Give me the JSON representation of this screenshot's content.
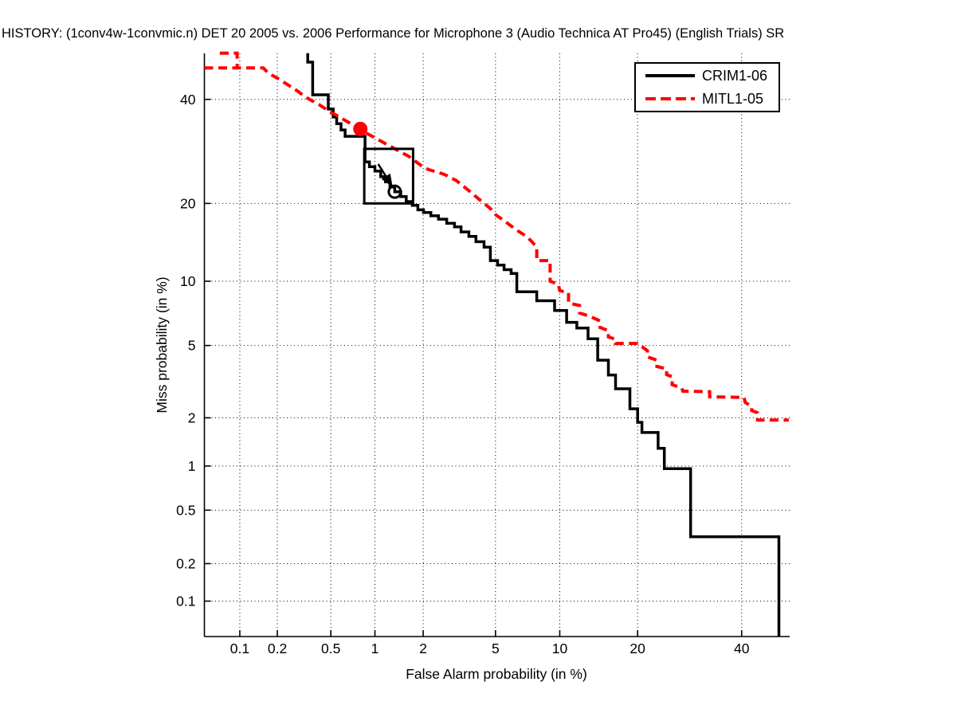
{
  "title": "HISTORY: (1conv4w-1convmic.n) DET 20 2005 vs. 2006 Performance for Microphone 3 (Audio Technica AT Pro45) (English Trials) SR",
  "axes": {
    "x": {
      "label": "False Alarm probability (in %)",
      "ticks": [
        0.1,
        0.2,
        0.5,
        1,
        2,
        5,
        10,
        20,
        40
      ],
      "range_pct": [
        0.05,
        50
      ],
      "scale": "probit"
    },
    "y": {
      "label": "Miss probability (in %)",
      "ticks": [
        0.1,
        0.2,
        0.5,
        1,
        2,
        5,
        10,
        20,
        40
      ],
      "range_pct": [
        0.05,
        50
      ],
      "scale": "probit"
    }
  },
  "legend": {
    "entries": [
      {
        "label": "CRIM1-06",
        "color": "#000000",
        "style": "solid"
      },
      {
        "label": "MITL1-05",
        "color": "#ff0000",
        "style": "dashed"
      }
    ]
  },
  "colors": {
    "crim": "#000000",
    "mitl": "#ff0000",
    "grid": "#000000",
    "background": "#ffffff"
  },
  "chart_data": {
    "type": "line",
    "subtype": "DET curve (step lines, probit-scaled axes)",
    "title": "HISTORY: (1conv4w-1convmic.n) DET 20 2005 vs. 2006 Performance for Microphone 3 (Audio Technica AT Pro45) (English Trials) SR",
    "xlabel": "False Alarm probability (in %)",
    "ylabel": "Miss probability (in %)",
    "x_ticks": [
      0.1,
      0.2,
      0.5,
      1,
      2,
      5,
      10,
      20,
      40
    ],
    "y_ticks": [
      0.1,
      0.2,
      0.5,
      1,
      2,
      5,
      10,
      20,
      40
    ],
    "xlim_pct": [
      0.05,
      50
    ],
    "ylim_pct": [
      0.05,
      50
    ],
    "grid": "dotted",
    "legend_position": "top-right",
    "series": [
      {
        "name": "CRIM1-06",
        "color": "#000000",
        "style": "solid",
        "width": 3.5,
        "segments": [
          [
            [
              0.34,
              50.3
            ],
            [
              0.34,
              48.3
            ],
            [
              0.37,
              48.3
            ],
            [
              0.37,
              41.0
            ],
            [
              0.48,
              41.0
            ],
            [
              0.48,
              37.9
            ],
            [
              0.52,
              37.9
            ],
            [
              0.52,
              36.2
            ],
            [
              0.55,
              36.2
            ],
            [
              0.55,
              34.8
            ],
            [
              0.59,
              34.8
            ],
            [
              0.59,
              33.5
            ],
            [
              0.63,
              33.5
            ],
            [
              0.63,
              32.2
            ],
            [
              0.86,
              32.2
            ],
            [
              0.86,
              27.2
            ],
            [
              0.92,
              27.2
            ],
            [
              0.92,
              26.3
            ],
            [
              1.0,
              26.3
            ],
            [
              1.0,
              25.5
            ],
            [
              1.09,
              25.5
            ],
            [
              1.09,
              24.5
            ],
            [
              1.17,
              24.5
            ],
            [
              1.17,
              23.6
            ],
            [
              1.25,
              23.6
            ],
            [
              1.25,
              22.7
            ],
            [
              1.34,
              22.7
            ],
            [
              1.34,
              21.9
            ],
            [
              1.46,
              21.9
            ],
            [
              1.46,
              21.1
            ],
            [
              1.58,
              21.1
            ],
            [
              1.58,
              20.3
            ],
            [
              1.72,
              20.3
            ],
            [
              1.72,
              19.7
            ],
            [
              1.86,
              19.7
            ],
            [
              1.86,
              19.0
            ],
            [
              2.01,
              19.0
            ],
            [
              2.01,
              18.6
            ],
            [
              2.22,
              18.6
            ],
            [
              2.22,
              18.1
            ],
            [
              2.46,
              18.1
            ],
            [
              2.46,
              17.6
            ],
            [
              2.74,
              17.6
            ],
            [
              2.74,
              17.0
            ],
            [
              3.03,
              17.0
            ],
            [
              3.03,
              16.5
            ],
            [
              3.29,
              16.5
            ],
            [
              3.29,
              15.8
            ],
            [
              3.63,
              15.8
            ],
            [
              3.63,
              15.2
            ],
            [
              3.96,
              15.2
            ],
            [
              3.96,
              14.5
            ],
            [
              4.37,
              14.5
            ],
            [
              4.37,
              13.8
            ],
            [
              4.71,
              13.8
            ],
            [
              4.71,
              12.2
            ],
            [
              5.12,
              12.2
            ],
            [
              5.12,
              11.7
            ],
            [
              5.52,
              11.7
            ],
            [
              5.52,
              11.2
            ],
            [
              5.98,
              11.2
            ],
            [
              5.98,
              10.8
            ],
            [
              6.37,
              10.8
            ],
            [
              6.37,
              9.0
            ],
            [
              7.9,
              9.0
            ],
            [
              7.9,
              8.2
            ],
            [
              9.5,
              8.2
            ],
            [
              9.5,
              7.4
            ],
            [
              10.7,
              7.4
            ],
            [
              10.7,
              6.5
            ],
            [
              11.8,
              6.5
            ],
            [
              11.8,
              6.1
            ],
            [
              13.1,
              6.1
            ],
            [
              13.1,
              5.4
            ],
            [
              14.3,
              5.4
            ],
            [
              14.3,
              4.2
            ],
            [
              15.7,
              4.2
            ],
            [
              15.7,
              3.5
            ],
            [
              16.7,
              3.5
            ],
            [
              16.7,
              2.94
            ],
            [
              18.8,
              2.94
            ],
            [
              18.8,
              2.26
            ],
            [
              20.0,
              2.26
            ],
            [
              20.0,
              1.88
            ],
            [
              20.7,
              1.88
            ],
            [
              20.7,
              1.63
            ],
            [
              23.4,
              1.63
            ],
            [
              23.4,
              1.3
            ],
            [
              24.5,
              1.3
            ],
            [
              24.5,
              0.96
            ],
            [
              29.4,
              0.96
            ],
            [
              29.4,
              0.32
            ],
            [
              48.3,
              0.32
            ],
            [
              48.3,
              0.05
            ]
          ]
        ]
      },
      {
        "name": "MITL1-05",
        "color": "#ff0000",
        "style": "dashed",
        "width": 4,
        "segments": [
          [
            [
              0.068,
              50.3
            ],
            [
              0.095,
              50.3
            ],
            [
              0.095,
              47.0
            ]
          ],
          [
            [
              0.05,
              47.0
            ],
            [
              0.155,
              47.0
            ],
            [
              0.17,
              45.8
            ],
            [
              0.2,
              44.7
            ],
            [
              0.23,
              43.6
            ],
            [
              0.26,
              42.6
            ],
            [
              0.29,
              41.7
            ],
            [
              0.32,
              40.7
            ],
            [
              0.36,
              39.8
            ],
            [
              0.41,
              38.9
            ],
            [
              0.45,
              38.1
            ],
            [
              0.5,
              37.2
            ],
            [
              0.57,
              36.3
            ],
            [
              0.63,
              35.5
            ],
            [
              0.7,
              34.7
            ],
            [
              0.78,
              33.9
            ],
            [
              0.86,
              33.0
            ],
            [
              0.96,
              32.2
            ],
            [
              1.07,
              31.4
            ],
            [
              1.19,
              30.6
            ],
            [
              1.33,
              29.8
            ],
            [
              1.47,
              29.0
            ],
            [
              1.63,
              28.3
            ],
            [
              1.78,
              27.4
            ],
            [
              1.95,
              26.5
            ],
            [
              2.14,
              25.8
            ],
            [
              2.6,
              25.0
            ],
            [
              2.74,
              24.7
            ],
            [
              3.1,
              23.8
            ],
            [
              3.53,
              22.4
            ],
            [
              3.96,
              21.1
            ],
            [
              4.37,
              20.0
            ],
            [
              4.71,
              19.2
            ],
            [
              5.03,
              18.2
            ],
            [
              5.52,
              17.4
            ],
            [
              5.93,
              16.7
            ],
            [
              6.48,
              15.9
            ],
            [
              7.07,
              15.2
            ],
            [
              7.45,
              14.6
            ],
            [
              7.9,
              13.8
            ],
            [
              7.9,
              12.2
            ],
            [
              9.08,
              12.2
            ],
            [
              9.08,
              10.0
            ],
            [
              9.85,
              9.7
            ],
            [
              10.0,
              9.1
            ],
            [
              10.9,
              8.9
            ],
            [
              10.9,
              8.0
            ],
            [
              12.1,
              7.8
            ],
            [
              12.1,
              7.2
            ],
            [
              13.3,
              6.95
            ],
            [
              14.6,
              6.6
            ],
            [
              14.6,
              6.14
            ],
            [
              15.7,
              5.93
            ],
            [
              15.7,
              5.52
            ],
            [
              16.7,
              5.37
            ],
            [
              16.7,
              5.12
            ],
            [
              20.0,
              5.12
            ],
            [
              21.6,
              4.7
            ],
            [
              21.6,
              4.37
            ],
            [
              23.2,
              4.2
            ],
            [
              23.2,
              3.89
            ],
            [
              24.9,
              3.78
            ],
            [
              24.9,
              3.52
            ],
            [
              25.9,
              3.43
            ],
            [
              25.9,
              3.1
            ],
            [
              27.7,
              2.97
            ],
            [
              27.9,
              2.85
            ],
            [
              33.2,
              2.83
            ],
            [
              33.2,
              2.65
            ],
            [
              40.5,
              2.63
            ],
            [
              40.8,
              2.46
            ],
            [
              42.2,
              2.33
            ],
            [
              42.2,
              2.21
            ],
            [
              43.5,
              2.14
            ],
            [
              43.5,
              1.94
            ],
            [
              50.5,
              1.94
            ]
          ]
        ]
      }
    ],
    "markers": [
      {
        "name": "mitl-operating-point",
        "type": "filled-circle",
        "color": "#ff0000",
        "fa_pct": 0.8,
        "miss_pct": 33.7,
        "radius": 8
      },
      {
        "name": "crim-operating-point",
        "type": "open-circle",
        "color": "#000000",
        "fa_pct": 1.34,
        "miss_pct": 21.9,
        "radius": 7.5
      }
    ],
    "arrow_annotation": {
      "from": {
        "fa_pct": 1.05,
        "miss_pct": 26.8
      },
      "to": {
        "fa_pct": 1.3,
        "miss_pct": 22.7
      },
      "color": "#000000"
    },
    "zoom_box": {
      "fa_pct": [
        0.85,
        1.74
      ],
      "miss_pct": [
        20.0,
        29.7
      ],
      "color": "#000000"
    }
  }
}
